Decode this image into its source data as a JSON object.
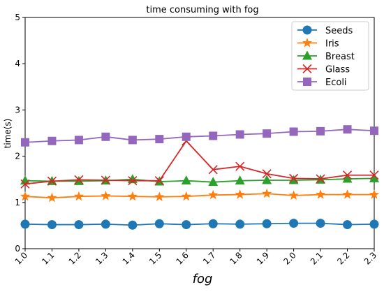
{
  "chart_data": {
    "type": "line",
    "title": "time consuming with fog",
    "xlabel": "fog",
    "ylabel": "time(s)",
    "x": [
      1.0,
      1.1,
      1.2,
      1.3,
      1.4,
      1.5,
      1.6,
      1.7,
      1.8,
      1.9,
      2.0,
      2.1,
      2.2,
      2.3
    ],
    "x_tick_labels": [
      "1.0",
      "1.1",
      "1.2",
      "1.3",
      "1.4",
      "1.5",
      "1.6",
      "1.7",
      "1.8",
      "1.9",
      "2.0",
      "2.1",
      "2.2",
      "2.3"
    ],
    "xlim": [
      1.0,
      2.3
    ],
    "ylim": [
      0,
      5
    ],
    "y_ticks": [
      0,
      1,
      2,
      3,
      4,
      5
    ],
    "grid": false,
    "legend_position": "top-right",
    "series": [
      {
        "name": "Seeds",
        "color": "#1f77b4",
        "marker": "circle",
        "values": [
          0.53,
          0.52,
          0.52,
          0.53,
          0.51,
          0.54,
          0.52,
          0.54,
          0.53,
          0.54,
          0.55,
          0.55,
          0.52,
          0.53
        ]
      },
      {
        "name": "Iris",
        "color": "#ff7f0e",
        "marker": "star",
        "values": [
          1.13,
          1.1,
          1.13,
          1.14,
          1.13,
          1.12,
          1.13,
          1.16,
          1.17,
          1.19,
          1.15,
          1.17,
          1.17,
          1.17
        ]
      },
      {
        "name": "Breast",
        "color": "#2ca02c",
        "marker": "triangle",
        "values": [
          1.47,
          1.46,
          1.46,
          1.47,
          1.5,
          1.45,
          1.47,
          1.44,
          1.47,
          1.48,
          1.48,
          1.49,
          1.51,
          1.52
        ]
      },
      {
        "name": "Glass",
        "color": "#d62728",
        "marker": "x",
        "values": [
          1.4,
          1.46,
          1.49,
          1.48,
          1.47,
          1.47,
          2.33,
          1.71,
          1.78,
          1.62,
          1.52,
          1.51,
          1.59,
          1.59
        ]
      },
      {
        "name": "Ecoli",
        "color": "#9467bd",
        "marker": "square",
        "values": [
          2.3,
          2.33,
          2.35,
          2.42,
          2.35,
          2.37,
          2.42,
          2.44,
          2.47,
          2.49,
          2.53,
          2.54,
          2.58,
          2.55
        ]
      }
    ]
  }
}
